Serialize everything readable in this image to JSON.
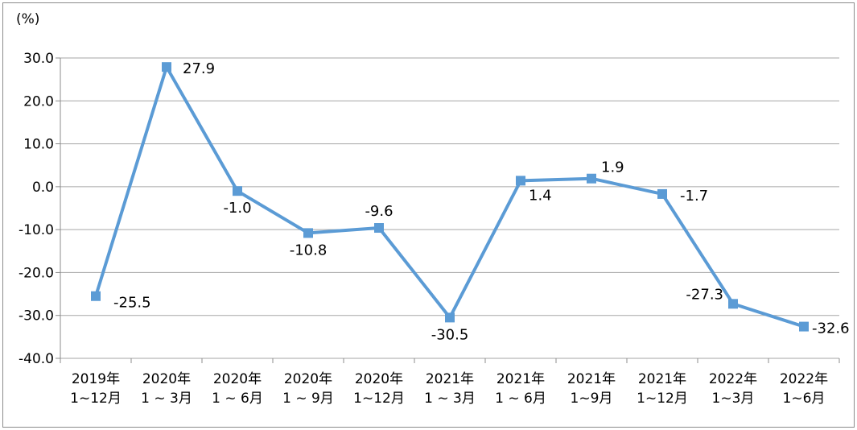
{
  "chart_data": {
    "type": "line",
    "unit_label": "(%)",
    "categories": [
      [
        "2019年",
        "1~12月"
      ],
      [
        "2020年",
        "1 ~ 3月"
      ],
      [
        "2020年",
        "1 ~ 6月"
      ],
      [
        "2020年",
        "1 ~ 9月"
      ],
      [
        "2020年",
        "1~12月"
      ],
      [
        "2021年",
        "1 ~ 3月"
      ],
      [
        "2021年",
        "1 ~ 6月"
      ],
      [
        "2021年",
        "1~9月"
      ],
      [
        "2021年",
        "1~12月"
      ],
      [
        "2022年",
        "1~3月"
      ],
      [
        "2022年",
        "1~6月"
      ]
    ],
    "series": [
      {
        "values": [
          -25.5,
          27.9,
          -1.0,
          -10.8,
          -9.6,
          -30.5,
          1.4,
          1.9,
          -1.7,
          -27.3,
          -32.6
        ],
        "data_labels": [
          "-25.5",
          "27.9",
          "-1.0",
          "-10.8",
          "-9.6",
          "-30.5",
          "1.4",
          "1.9",
          "-1.7",
          "-27.3",
          "-32.6"
        ],
        "color": "#5b9bd5"
      }
    ],
    "yticks": [
      "30.0",
      "20.0",
      "10.0",
      "0.0",
      "-10.0",
      "-20.0",
      "-30.0",
      "-40.0"
    ],
    "ylim": [
      -40,
      30
    ],
    "grid": true,
    "legend": "none"
  }
}
